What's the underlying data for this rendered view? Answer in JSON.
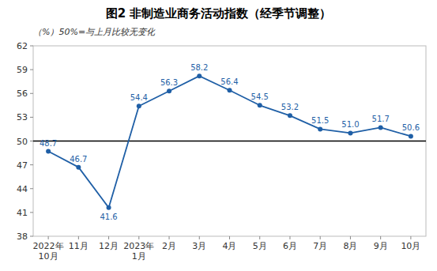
{
  "chart_data": {
    "type": "line",
    "title": "图2 非制造业商务活动指数（经季节调整）",
    "subtitle": "（%）50%=与上月比较无变化",
    "categories": [
      "2022年\n10月",
      "11月",
      "12月",
      "2023年\n1月",
      "2月",
      "3月",
      "4月",
      "5月",
      "6月",
      "7月",
      "8月",
      "9月",
      "10月"
    ],
    "values": [
      48.7,
      46.7,
      41.6,
      54.4,
      56.3,
      58.2,
      56.4,
      54.5,
      53.2,
      51.5,
      51.0,
      51.7,
      50.6
    ],
    "value_labels": [
      "48.7",
      "46.7",
      "41.6",
      "54.4",
      "56.3",
      "58.2",
      "56.4",
      "54.5",
      "53.2",
      "51.5",
      "51.0",
      "51.7",
      "50.6"
    ],
    "color": "#1f5fa6",
    "marker": "circle",
    "data_labels": true,
    "grid": false,
    "reference_line": 50,
    "ylim": [
      38,
      62
    ],
    "yticks": [
      38,
      41,
      44,
      47,
      50,
      53,
      56,
      59,
      62
    ]
  }
}
